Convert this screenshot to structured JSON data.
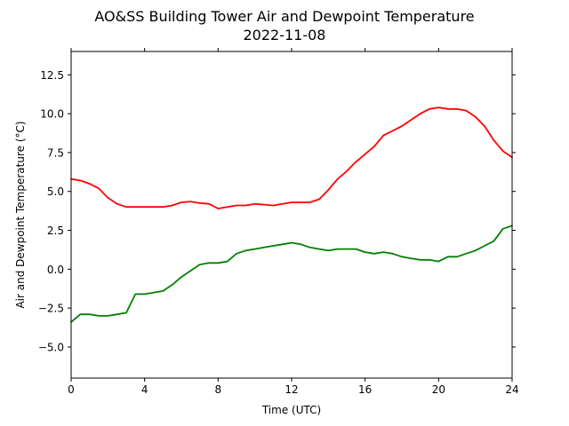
{
  "chart_data": {
    "type": "line",
    "title": "AO&SS Building Tower Air and Dewpoint Temperature",
    "subtitle": "2022-11-08",
    "xlabel": "Time (UTC)",
    "ylabel": "Air and Dewpoint Temperature (°C)",
    "xlim": [
      0,
      24
    ],
    "ylim": [
      -7,
      14
    ],
    "x_ticks": [
      0,
      4,
      8,
      12,
      16,
      20,
      24
    ],
    "x_tick_labels": [
      "0",
      "4",
      "8",
      "12",
      "16",
      "20",
      "24"
    ],
    "y_ticks": [
      -5.0,
      -2.5,
      0.0,
      2.5,
      5.0,
      7.5,
      10.0,
      12.5
    ],
    "y_tick_labels": [
      "−5.0",
      "−2.5",
      "0.0",
      "2.5",
      "5.0",
      "7.5",
      "10.0",
      "12.5"
    ],
    "grid": false,
    "legend": "none",
    "series": [
      {
        "color": "#ff0000",
        "x": [
          0,
          0.5,
          1.0,
          1.5,
          2.0,
          2.5,
          3.0,
          3.5,
          4.0,
          4.5,
          5.0,
          5.5,
          6.0,
          6.5,
          7.0,
          7.5,
          8.0,
          8.5,
          9.0,
          9.5,
          10.0,
          10.5,
          11.0,
          11.5,
          12.0,
          12.5,
          13.0,
          13.5,
          14.0,
          14.5,
          15.0,
          15.5,
          16.0,
          16.5,
          17.0,
          17.5,
          18.0,
          18.5,
          19.0,
          19.5,
          20.0,
          20.5,
          21.0,
          21.5,
          22.0,
          22.5,
          23.0,
          23.5,
          24.0
        ],
        "values": [
          5.8,
          5.7,
          5.5,
          5.2,
          4.6,
          4.2,
          4.0,
          4.0,
          4.0,
          4.0,
          4.0,
          4.1,
          4.3,
          4.35,
          4.25,
          4.2,
          3.9,
          4.0,
          4.1,
          4.1,
          4.2,
          4.15,
          4.1,
          4.2,
          4.3,
          4.3,
          4.3,
          4.5,
          5.1,
          5.8,
          6.3,
          6.9,
          7.4,
          7.9,
          8.6,
          8.9,
          9.2,
          9.6,
          10.0,
          10.3,
          10.4,
          10.3,
          10.3,
          10.2,
          9.8,
          9.2,
          8.3,
          7.6,
          7.2
        ]
      },
      {
        "color": "#008000",
        "x": [
          0,
          0.5,
          1.0,
          1.5,
          2.0,
          2.5,
          3.0,
          3.5,
          4.0,
          4.5,
          5.0,
          5.5,
          6.0,
          6.5,
          7.0,
          7.5,
          8.0,
          8.5,
          9.0,
          9.5,
          10.0,
          10.5,
          11.0,
          11.5,
          12.0,
          12.5,
          13.0,
          13.5,
          14.0,
          14.5,
          15.0,
          15.5,
          16.0,
          16.5,
          17.0,
          17.5,
          18.0,
          18.5,
          19.0,
          19.5,
          20.0,
          20.5,
          21.0,
          21.5,
          22.0,
          22.5,
          23.0,
          23.5,
          24.0
        ],
        "values": [
          -3.4,
          -2.9,
          -2.9,
          -3.0,
          -3.0,
          -2.9,
          -2.8,
          -1.6,
          -1.6,
          -1.5,
          -1.4,
          -1.0,
          -0.5,
          -0.1,
          0.3,
          0.4,
          0.4,
          0.5,
          1.0,
          1.2,
          1.3,
          1.4,
          1.5,
          1.6,
          1.7,
          1.6,
          1.4,
          1.3,
          1.2,
          1.3,
          1.3,
          1.3,
          1.1,
          1.0,
          1.1,
          1.0,
          0.8,
          0.7,
          0.6,
          0.6,
          0.5,
          0.8,
          0.8,
          1.0,
          1.2,
          1.5,
          1.8,
          2.6,
          2.8
        ]
      }
    ]
  }
}
